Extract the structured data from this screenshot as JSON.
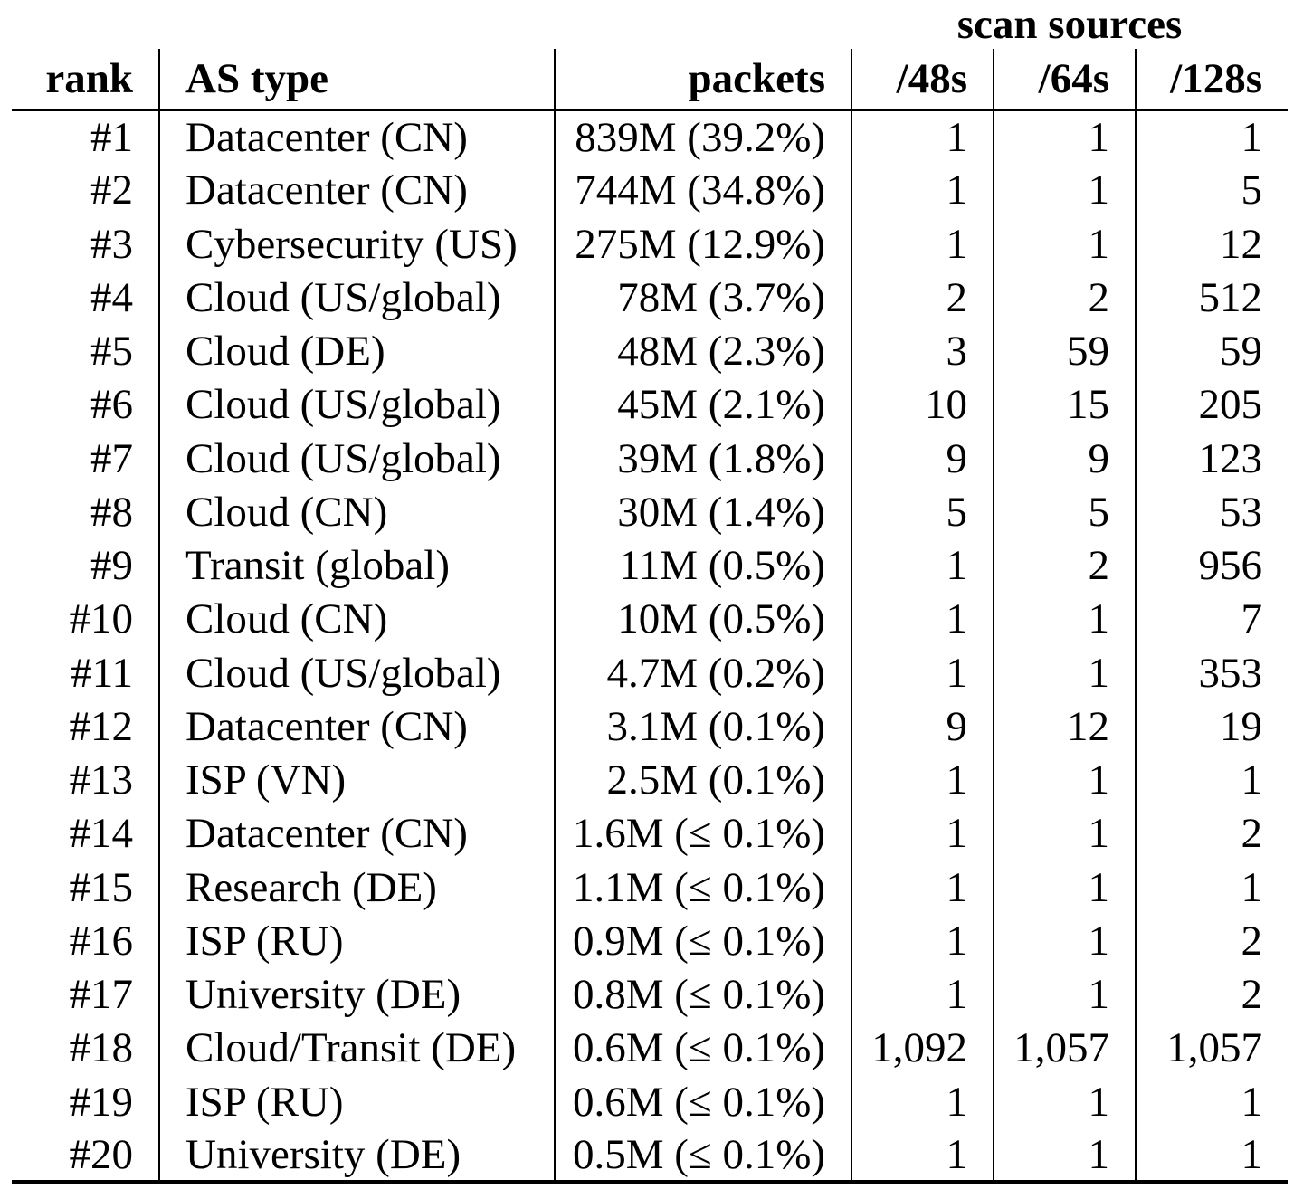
{
  "table": {
    "group_header": {
      "scan_sources": "scan sources"
    },
    "columns": {
      "rank": "rank",
      "as_type": "AS type",
      "packets": "packets",
      "s48": "/48s",
      "s64": "/64s",
      "s128": "/128s"
    },
    "rows": [
      {
        "rank": "#1",
        "as_type": "Datacenter (CN)",
        "packets": "839M (39.2%)",
        "s48": "1",
        "s64": "1",
        "s128": "1"
      },
      {
        "rank": "#2",
        "as_type": "Datacenter (CN)",
        "packets": "744M (34.8%)",
        "s48": "1",
        "s64": "1",
        "s128": "5"
      },
      {
        "rank": "#3",
        "as_type": "Cybersecurity (US)",
        "packets": "275M (12.9%)",
        "s48": "1",
        "s64": "1",
        "s128": "12"
      },
      {
        "rank": "#4",
        "as_type": "Cloud (US/global)",
        "packets": "78M (3.7%)",
        "s48": "2",
        "s64": "2",
        "s128": "512"
      },
      {
        "rank": "#5",
        "as_type": "Cloud (DE)",
        "packets": "48M (2.3%)",
        "s48": "3",
        "s64": "59",
        "s128": "59"
      },
      {
        "rank": "#6",
        "as_type": "Cloud (US/global)",
        "packets": "45M (2.1%)",
        "s48": "10",
        "s64": "15",
        "s128": "205"
      },
      {
        "rank": "#7",
        "as_type": "Cloud (US/global)",
        "packets": "39M (1.8%)",
        "s48": "9",
        "s64": "9",
        "s128": "123"
      },
      {
        "rank": "#8",
        "as_type": "Cloud (CN)",
        "packets": "30M (1.4%)",
        "s48": "5",
        "s64": "5",
        "s128": "53"
      },
      {
        "rank": "#9",
        "as_type": "Transit (global)",
        "packets": "11M (0.5%)",
        "s48": "1",
        "s64": "2",
        "s128": "956"
      },
      {
        "rank": "#10",
        "as_type": "Cloud (CN)",
        "packets": "10M (0.5%)",
        "s48": "1",
        "s64": "1",
        "s128": "7"
      },
      {
        "rank": "#11",
        "as_type": "Cloud (US/global)",
        "packets": "4.7M (0.2%)",
        "s48": "1",
        "s64": "1",
        "s128": "353"
      },
      {
        "rank": "#12",
        "as_type": "Datacenter (CN)",
        "packets": "3.1M (0.1%)",
        "s48": "9",
        "s64": "12",
        "s128": "19"
      },
      {
        "rank": "#13",
        "as_type": "ISP (VN)",
        "packets": "2.5M (0.1%)",
        "s48": "1",
        "s64": "1",
        "s128": "1"
      },
      {
        "rank": "#14",
        "as_type": "Datacenter (CN)",
        "packets": "1.6M (≤ 0.1%)",
        "s48": "1",
        "s64": "1",
        "s128": "2"
      },
      {
        "rank": "#15",
        "as_type": "Research (DE)",
        "packets": "1.1M (≤ 0.1%)",
        "s48": "1",
        "s64": "1",
        "s128": "1"
      },
      {
        "rank": "#16",
        "as_type": "ISP (RU)",
        "packets": "0.9M (≤ 0.1%)",
        "s48": "1",
        "s64": "1",
        "s128": "2"
      },
      {
        "rank": "#17",
        "as_type": "University (DE)",
        "packets": "0.8M (≤ 0.1%)",
        "s48": "1",
        "s64": "1",
        "s128": "2"
      },
      {
        "rank": "#18",
        "as_type": "Cloud/Transit (DE)",
        "packets": "0.6M (≤ 0.1%)",
        "s48": "1,092",
        "s64": "1,057",
        "s128": "1,057"
      },
      {
        "rank": "#19",
        "as_type": "ISP (RU)",
        "packets": "0.6M (≤ 0.1%)",
        "s48": "1",
        "s64": "1",
        "s128": "1"
      },
      {
        "rank": "#20",
        "as_type": "University (DE)",
        "packets": "0.5M (≤ 0.1%)",
        "s48": "1",
        "s64": "1",
        "s128": "1"
      }
    ]
  }
}
